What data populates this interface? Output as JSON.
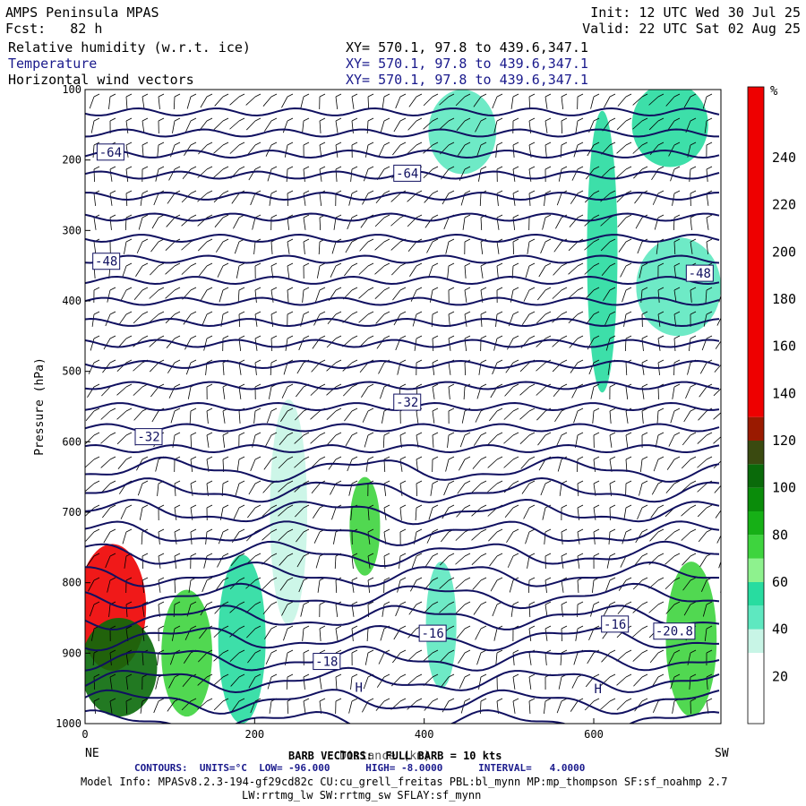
{
  "header": {
    "title": "AMPS Peninsula MPAS",
    "fcst": "Fcst:   82 h",
    "init": "Init: 12 UTC Wed 30 Jul 25",
    "valid": "Valid: 22 UTC Sat 02 Aug 25",
    "fields": [
      {
        "name": "Relative humidity (w.r.t. ice)",
        "xy": "XY= 570.1, 97.8 to 439.6,347.1"
      },
      {
        "name": "Temperature",
        "xy": "XY= 570.1, 97.8 to 439.6,347.1"
      },
      {
        "name": "Horizontal wind vectors",
        "xy": "XY= 570.1, 97.8 to 439.6,347.1"
      }
    ]
  },
  "footer": {
    "barb": "BARB VECTORS:  FULL BARB = 10 kts",
    "contours": "CONTOURS:  UNITS=°C  LOW= -96.000      HIGH= -8.0000      INTERVAL=   4.0000",
    "model1": "Model Info: MPASv8.2.3-194-gf29cd82c CU:cu_grell_freitas PBL:bl_mynn MP:mp_thompson SF:sf_noahmp 2.7",
    "model2": "LW:rrtmg_lw SW:rrtmg_sw SFLAY:sf_mynn"
  },
  "chart_data": {
    "type": "heatmap",
    "ylabel": "Pressure (hPa)",
    "xlabel": "Distance (km)",
    "x_ticks": [
      "0",
      "200",
      "400",
      "600"
    ],
    "x_tick_values": [
      0,
      200,
      400,
      600
    ],
    "xlim": [
      0,
      750
    ],
    "y_ticks": [
      "100",
      "200",
      "300",
      "400",
      "500",
      "600",
      "700",
      "800",
      "900",
      "1000"
    ],
    "y_tick_values": [
      100,
      200,
      300,
      400,
      500,
      600,
      700,
      800,
      900,
      1000
    ],
    "ylim": [
      1000,
      100
    ],
    "x_end_labels": {
      "left": "NE",
      "right": "SW"
    },
    "colorbar": {
      "unit": "%",
      "ticks": [
        "20",
        "40",
        "60",
        "80",
        "100",
        "120",
        "140",
        "160",
        "180",
        "200",
        "220",
        "240"
      ],
      "tick_values": [
        20,
        40,
        60,
        80,
        100,
        120,
        140,
        160,
        180,
        200,
        220,
        240
      ],
      "range": [
        0,
        270
      ],
      "bands": [
        {
          "from": 0,
          "to": 10,
          "color": "#ffffff"
        },
        {
          "from": 10,
          "to": 30,
          "color": "#ffffff"
        },
        {
          "from": 30,
          "to": 40,
          "color": "#c8f5e6"
        },
        {
          "from": 40,
          "to": 50,
          "color": "#5ee8c0"
        },
        {
          "from": 50,
          "to": 60,
          "color": "#28dca0"
        },
        {
          "from": 60,
          "to": 70,
          "color": "#8ef28e"
        },
        {
          "from": 70,
          "to": 80,
          "color": "#3ed43e"
        },
        {
          "from": 80,
          "to": 90,
          "color": "#16b016"
        },
        {
          "from": 90,
          "to": 100,
          "color": "#0a8c0a"
        },
        {
          "from": 100,
          "to": 110,
          "color": "#0a6a0a"
        },
        {
          "from": 110,
          "to": 120,
          "color": "#3a4a10"
        },
        {
          "from": 120,
          "to": 130,
          "color": "#9a1a00"
        },
        {
          "from": 130,
          "to": 270,
          "color": "#ee0000"
        }
      ]
    },
    "rh_regions": [
      {
        "x": 32,
        "p": 835,
        "rx": 40,
        "rp": 90,
        "color": "#ee0000"
      },
      {
        "x": 40,
        "p": 920,
        "rx": 45,
        "rp": 70,
        "color": "#0a6a0a"
      },
      {
        "x": 120,
        "p": 900,
        "rx": 30,
        "rp": 90,
        "color": "#3ed43e"
      },
      {
        "x": 185,
        "p": 880,
        "rx": 28,
        "rp": 120,
        "color": "#28dca0"
      },
      {
        "x": 240,
        "p": 700,
        "rx": 22,
        "rp": 160,
        "color": "#c8f5e6"
      },
      {
        "x": 330,
        "p": 720,
        "rx": 18,
        "rp": 70,
        "color": "#3ed43e"
      },
      {
        "x": 420,
        "p": 860,
        "rx": 18,
        "rp": 90,
        "color": "#5ee8c0"
      },
      {
        "x": 445,
        "p": 160,
        "rx": 40,
        "rp": 60,
        "color": "#5ee8c0"
      },
      {
        "x": 610,
        "p": 330,
        "rx": 18,
        "rp": 200,
        "color": "#28dca0"
      },
      {
        "x": 700,
        "p": 380,
        "rx": 50,
        "rp": 70,
        "color": "#5ee8c0"
      },
      {
        "x": 690,
        "p": 150,
        "rx": 45,
        "rp": 60,
        "color": "#28dca0"
      },
      {
        "x": 715,
        "p": 880,
        "rx": 30,
        "rp": 110,
        "color": "#3ed43e"
      }
    ],
    "temperature_contour_labels": [
      {
        "text": "-64",
        "x": 30,
        "p": 190
      },
      {
        "text": "-64",
        "x": 380,
        "p": 220
      },
      {
        "text": "-48",
        "x": 25,
        "p": 345
      },
      {
        "text": "-48",
        "x": 725,
        "p": 362
      },
      {
        "text": "-32",
        "x": 380,
        "p": 545
      },
      {
        "text": "-32",
        "x": 75,
        "p": 594
      },
      {
        "text": "-16",
        "x": 410,
        "p": 873
      },
      {
        "text": "-16",
        "x": 625,
        "p": 860
      },
      {
        "text": "-18",
        "x": 285,
        "p": 913
      },
      {
        "text": "-20.8",
        "x": 695,
        "p": 870
      }
    ],
    "h_labels": [
      {
        "text": "H",
        "x": 323,
        "p": 955
      },
      {
        "text": "H",
        "x": 605,
        "p": 957
      }
    ]
  }
}
